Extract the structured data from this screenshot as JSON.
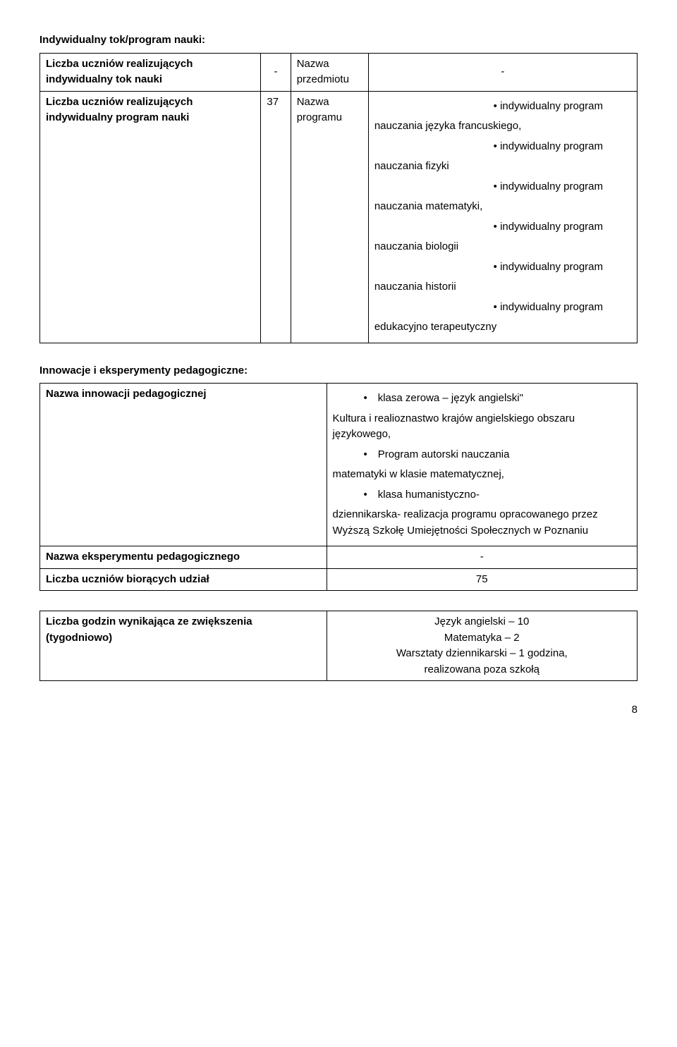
{
  "table1": {
    "section_title": "Indywidualny tok/program nauki:",
    "row1": {
      "label": "Liczba uczniów realizujących indywidualny tok nauki",
      "count": "-",
      "type_label": "Nazwa przedmiotu",
      "value": "-"
    },
    "row2": {
      "label": "Liczba uczniów realizujących indywidualny program nauki",
      "count": "37",
      "type_label": "Nazwa programu",
      "bullet_prefix": "indywidualny program",
      "items": [
        "nauczania języka francuskiego,",
        "nauczania fizyki",
        "nauczania matematyki,",
        "nauczania biologii",
        "nauczania historii",
        "edukacyjno terapeutyczny"
      ]
    }
  },
  "table2": {
    "section_title": "Innowacje i eksperymenty pedagogiczne:",
    "row1": {
      "label": "Nazwa innowacji pedagogicznej",
      "bullets": [
        {
          "lead": "klasa zerowa – język angielski\"",
          "cont": "Kultura i realioznastwo krajów angielskiego obszaru językowego,"
        },
        {
          "lead": "Program autorski nauczania",
          "cont": "matematyki w klasie matematycznej,"
        },
        {
          "lead": "klasa humanistyczno-",
          "cont": "dziennikarska- realizacja programu opracowanego przez Wyższą Szkołę Umiejętności Społecznych w Poznaniu"
        }
      ]
    },
    "row2": {
      "label": "Nazwa eksperymentu pedagogicznego",
      "value": "-"
    },
    "row3": {
      "label": "Liczba uczniów biorących udział",
      "value": "75"
    }
  },
  "table3": {
    "row1": {
      "label": "Liczba godzin wynikająca ze zwiększenia (tygodniowo)",
      "lines": [
        "Język angielski – 10",
        "Matematyka – 2",
        "Warsztaty dziennikarski – 1 godzina,",
        "realizowana poza szkołą"
      ]
    }
  },
  "page_number": "8"
}
